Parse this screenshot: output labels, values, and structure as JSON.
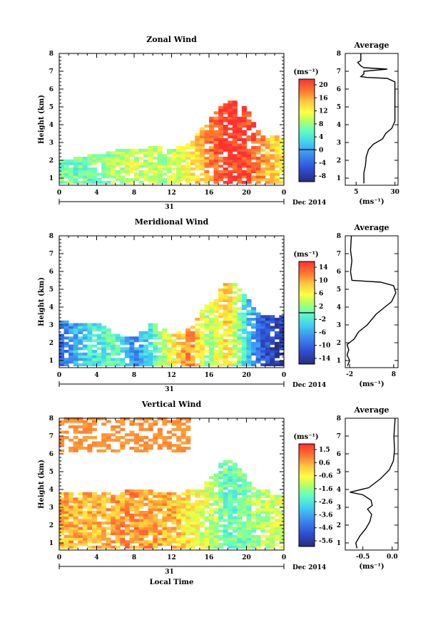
{
  "chart_data": [
    {
      "type": "heatmap",
      "title": "Zonal Wind",
      "ylabel": "Height (km)",
      "xlabel": "",
      "units": "(ms⁻¹)",
      "x_ticks": [
        "0",
        "4",
        "8",
        "12",
        "16",
        "20",
        "0"
      ],
      "y_ticks": [
        "1",
        "2",
        "3",
        "4",
        "5",
        "6",
        "7",
        "8"
      ],
      "date_day": "31",
      "date_label": "Dec 2014",
      "xlim": [
        0,
        24
      ],
      "ylim": [
        0.6,
        8.0
      ],
      "colorbar": {
        "ticks": [
          "20",
          "16",
          "12",
          "8",
          "4",
          "0",
          "-4",
          "-8"
        ],
        "vmin": -10,
        "vmax": 22,
        "zero_line": 0
      },
      "coverage_top_km": [
        {
          "t": 0,
          "h": 1.9
        },
        {
          "t": 2,
          "h": 2.1
        },
        {
          "t": 4,
          "h": 2.3
        },
        {
          "t": 6,
          "h": 2.5
        },
        {
          "t": 8,
          "h": 2.6
        },
        {
          "t": 10,
          "h": 2.7
        },
        {
          "t": 12,
          "h": 2.6
        },
        {
          "t": 14,
          "h": 2.9
        },
        {
          "t": 15,
          "h": 3.6
        },
        {
          "t": 16,
          "h": 4.2
        },
        {
          "t": 17,
          "h": 4.8
        },
        {
          "t": 18,
          "h": 5.3
        },
        {
          "t": 19,
          "h": 5.3
        },
        {
          "t": 20,
          "h": 4.9
        },
        {
          "t": 21,
          "h": 3.7
        },
        {
          "t": 22,
          "h": 3.2
        },
        {
          "t": 23,
          "h": 3.3
        },
        {
          "t": 24,
          "h": 3.1
        }
      ],
      "wind_ms": [
        {
          "t": 0,
          "v": 6
        },
        {
          "t": 4,
          "v": 7
        },
        {
          "t": 8,
          "v": 10
        },
        {
          "t": 12,
          "v": 9
        },
        {
          "t": 14,
          "v": 12
        },
        {
          "t": 16,
          "v": 18
        },
        {
          "t": 18,
          "v": 21
        },
        {
          "t": 20,
          "v": 21
        },
        {
          "t": 22,
          "v": 16
        },
        {
          "t": 24,
          "v": 12
        }
      ],
      "average_profile": {
        "title": "Average",
        "xlabel": "(ms⁻¹)",
        "x_ticks": [
          "5",
          "30"
        ],
        "xlim": [
          -2,
          32
        ],
        "ylim": [
          0.6,
          8.0
        ],
        "points": [
          {
            "v": 10,
            "h": 0.7
          },
          {
            "v": 10,
            "h": 1.3
          },
          {
            "v": 11,
            "h": 1.7
          },
          {
            "v": 11.5,
            "h": 2.2
          },
          {
            "v": 13,
            "h": 2.6
          },
          {
            "v": 16,
            "h": 2.9
          },
          {
            "v": 22,
            "h": 3.2
          },
          {
            "v": 24,
            "h": 3.5
          },
          {
            "v": 28,
            "h": 3.8
          },
          {
            "v": 30,
            "h": 4.2
          },
          {
            "v": 30,
            "h": 5.0
          },
          {
            "v": 30,
            "h": 6.2
          },
          {
            "v": 30,
            "h": 6.4
          },
          {
            "v": 25,
            "h": 6.6
          },
          {
            "v": 12,
            "h": 6.65
          },
          {
            "v": 8,
            "h": 6.7
          },
          {
            "v": 10,
            "h": 6.85
          },
          {
            "v": 10,
            "h": 7.0
          },
          {
            "v": 25,
            "h": 7.12
          },
          {
            "v": 10,
            "h": 7.2
          },
          {
            "v": 8,
            "h": 7.3
          },
          {
            "v": 6,
            "h": 7.5
          },
          {
            "v": 8,
            "h": 7.6
          },
          {
            "v": 8,
            "h": 8.0
          }
        ]
      }
    },
    {
      "type": "heatmap",
      "title": "Meridional Wind",
      "ylabel": "Height (km)",
      "xlabel": "",
      "units": "(ms⁻¹)",
      "x_ticks": [
        "0",
        "4",
        "8",
        "12",
        "16",
        "20",
        "0"
      ],
      "y_ticks": [
        "1",
        "2",
        "3",
        "4",
        "5",
        "6",
        "7",
        "8"
      ],
      "date_day": "31",
      "date_label": "Dec 2014",
      "xlim": [
        0,
        24
      ],
      "ylim": [
        0.6,
        8.0
      ],
      "colorbar": {
        "ticks": [
          "14",
          "10",
          "6",
          "2",
          "-2",
          "-6",
          "-10",
          "-14"
        ],
        "vmin": -16,
        "vmax": 16,
        "zero_line": 0
      },
      "coverage_top_km": [
        {
          "t": 0,
          "h": 3.2
        },
        {
          "t": 2,
          "h": 3.0
        },
        {
          "t": 4,
          "h": 3.1
        },
        {
          "t": 6,
          "h": 2.4
        },
        {
          "t": 8,
          "h": 2.2
        },
        {
          "t": 10,
          "h": 3.1
        },
        {
          "t": 12,
          "h": 2.4
        },
        {
          "t": 14,
          "h": 2.7
        },
        {
          "t": 15,
          "h": 3.6
        },
        {
          "t": 16,
          "h": 4.2
        },
        {
          "t": 17,
          "h": 4.9
        },
        {
          "t": 18,
          "h": 5.4
        },
        {
          "t": 19,
          "h": 5.2
        },
        {
          "t": 20,
          "h": 4.6
        },
        {
          "t": 21,
          "h": 3.6
        },
        {
          "t": 22,
          "h": 3.4
        },
        {
          "t": 23,
          "h": 3.5
        },
        {
          "t": 24,
          "h": 3.4
        }
      ],
      "wind_ms": [
        {
          "t": 0,
          "v": -10
        },
        {
          "t": 3,
          "v": -3
        },
        {
          "t": 6,
          "v": 0
        },
        {
          "t": 8,
          "v": -8
        },
        {
          "t": 12,
          "v": 6
        },
        {
          "t": 14,
          "v": 12
        },
        {
          "t": 16,
          "v": 2
        },
        {
          "t": 18,
          "v": 8
        },
        {
          "t": 20,
          "v": -4
        },
        {
          "t": 22,
          "v": -12
        },
        {
          "t": 24,
          "v": -14
        }
      ],
      "average_profile": {
        "title": "Average",
        "xlabel": "(ms⁻¹)",
        "x_ticks": [
          "-2",
          "8"
        ],
        "xlim": [
          -3,
          9
        ],
        "ylim": [
          0.6,
          8.0
        ],
        "points": [
          {
            "v": -2.5,
            "h": 0.7
          },
          {
            "v": -2,
            "h": 1.0
          },
          {
            "v": -2.6,
            "h": 1.3
          },
          {
            "v": -2.2,
            "h": 1.6
          },
          {
            "v": -2.6,
            "h": 1.9
          },
          {
            "v": -1,
            "h": 2.2
          },
          {
            "v": 0,
            "h": 2.6
          },
          {
            "v": 2,
            "h": 3.0
          },
          {
            "v": 4,
            "h": 3.6
          },
          {
            "v": 6,
            "h": 4.0
          },
          {
            "v": 7.5,
            "h": 4.3
          },
          {
            "v": 8.5,
            "h": 4.8
          },
          {
            "v": 8,
            "h": 5.2
          },
          {
            "v": 5,
            "h": 5.4
          },
          {
            "v": -1.5,
            "h": 5.5
          },
          {
            "v": -1.8,
            "h": 6.0
          },
          {
            "v": -1.5,
            "h": 6.6
          },
          {
            "v": -1.8,
            "h": 7.2
          },
          {
            "v": -1.6,
            "h": 8.0
          }
        ]
      }
    },
    {
      "type": "heatmap",
      "title": "Vertical Wind",
      "ylabel": "Height (km)",
      "xlabel": "Local Time",
      "units": "(ms⁻¹)",
      "x_ticks": [
        "0",
        "4",
        "8",
        "12",
        "16",
        "20",
        "0"
      ],
      "y_ticks": [
        "1",
        "2",
        "3",
        "4",
        "5",
        "6",
        "7",
        "8"
      ],
      "date_day": "31",
      "date_label": "Dec 2014",
      "xlim": [
        0,
        24
      ],
      "ylim": [
        0.6,
        8.0
      ],
      "colorbar": {
        "ticks": [
          "1.5",
          "0.6",
          "-0.6",
          "-1.6",
          "-2.6",
          "-3.6",
          "-4.6",
          "-5.6"
        ],
        "vmin": -6.0,
        "vmax": 2.0
      },
      "coverage_top_km": [
        {
          "t": 0,
          "h": 3.8
        },
        {
          "t": 4,
          "h": 3.7
        },
        {
          "t": 8,
          "h": 3.9
        },
        {
          "t": 12,
          "h": 3.8
        },
        {
          "t": 15,
          "h": 3.9
        },
        {
          "t": 16,
          "h": 4.5
        },
        {
          "t": 17,
          "h": 5.3
        },
        {
          "t": 18,
          "h": 5.6
        },
        {
          "t": 19,
          "h": 5.3
        },
        {
          "t": 20,
          "h": 4.6
        },
        {
          "t": 21,
          "h": 3.9
        },
        {
          "t": 24,
          "h": 3.8
        }
      ],
      "upper_layer_km": [
        6.1,
        8.0
      ],
      "upper_layer_time": [
        0,
        14
      ],
      "wind_ms": [
        {
          "t": 0,
          "v": 0.5
        },
        {
          "t": 4,
          "v": 0.3
        },
        {
          "t": 8,
          "v": 0.8
        },
        {
          "t": 12,
          "v": 0.4
        },
        {
          "t": 16,
          "v": -1.0
        },
        {
          "t": 18,
          "v": -2.0
        },
        {
          "t": 20,
          "v": -1.8
        },
        {
          "t": 22,
          "v": -1.0
        },
        {
          "t": 24,
          "v": -0.8
        }
      ],
      "average_profile": {
        "title": "Average",
        "xlabel": "(ms⁻¹)",
        "x_ticks": [
          "-0.5",
          "0.0"
        ],
        "xlim": [
          -0.8,
          0.1
        ],
        "ylim": [
          0.6,
          8.0
        ],
        "points": [
          {
            "v": -0.6,
            "h": 0.7
          },
          {
            "v": -0.62,
            "h": 1.0
          },
          {
            "v": -0.55,
            "h": 1.4
          },
          {
            "v": -0.45,
            "h": 1.8
          },
          {
            "v": -0.38,
            "h": 2.2
          },
          {
            "v": -0.35,
            "h": 2.6
          },
          {
            "v": -0.42,
            "h": 2.9
          },
          {
            "v": -0.34,
            "h": 3.1
          },
          {
            "v": -0.36,
            "h": 3.4
          },
          {
            "v": -0.5,
            "h": 3.7
          },
          {
            "v": -0.72,
            "h": 3.85
          },
          {
            "v": -0.4,
            "h": 4.1
          },
          {
            "v": -0.2,
            "h": 4.6
          },
          {
            "v": -0.05,
            "h": 5.1
          },
          {
            "v": 0.02,
            "h": 5.6
          },
          {
            "v": 0.04,
            "h": 6.2
          },
          {
            "v": 0.03,
            "h": 7.0
          },
          {
            "v": 0.05,
            "h": 8.0
          }
        ]
      }
    }
  ]
}
